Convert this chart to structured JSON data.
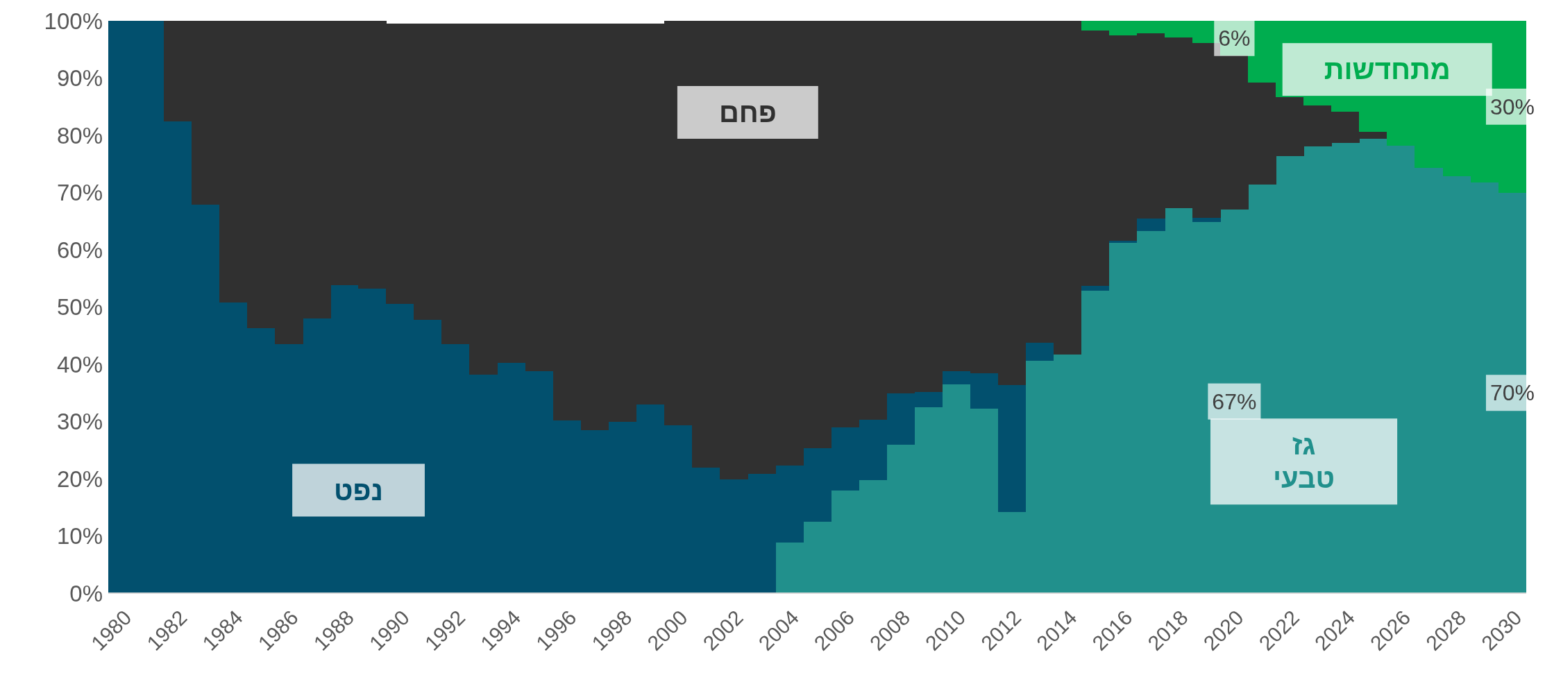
{
  "chart_data": {
    "type": "bar",
    "stacked": true,
    "categories": [
      "1980",
      null,
      "1982",
      null,
      "1984",
      null,
      "1986",
      null,
      "1988",
      null,
      "1990",
      null,
      "1992",
      null,
      "1994",
      null,
      "1996",
      null,
      "1998",
      null,
      "2000",
      null,
      "2002",
      null,
      "2004",
      null,
      "2006",
      null,
      "2008",
      null,
      "2010",
      null,
      "2012",
      null,
      "2014",
      null,
      "2016",
      null,
      "2018",
      null,
      "2020",
      null,
      "2022",
      null,
      "2024",
      null,
      "2026",
      null,
      "2028",
      null,
      "2030"
    ],
    "series": [
      {
        "name": "גז טבעי",
        "color": "#21908c",
        "values": [
          0,
          0,
          0,
          0,
          0,
          0,
          0,
          0,
          0,
          0,
          0,
          0,
          0,
          0,
          0,
          0,
          0,
          0,
          0,
          0,
          0,
          0,
          0,
          0,
          8.9,
          12.5,
          17.9,
          19.7,
          26,
          32.5,
          36.5,
          32.2,
          14.2,
          40.6,
          41.7,
          52.8,
          61.2,
          63.3,
          67.3,
          64.9,
          67,
          71.4,
          76.4,
          78.1,
          78.7,
          79.4,
          78.2,
          74.3,
          72.9,
          71.7,
          70
        ],
        "value_labels": [
          null,
          null,
          null,
          null,
          null,
          null,
          null,
          null,
          null,
          null,
          null,
          null,
          null,
          null,
          null,
          null,
          null,
          null,
          null,
          null,
          null,
          null,
          null,
          null,
          null,
          null,
          null,
          null,
          null,
          null,
          null,
          null,
          null,
          null,
          null,
          null,
          null,
          null,
          null,
          null,
          "67%",
          null,
          null,
          null,
          null,
          null,
          null,
          null,
          null,
          null,
          "70%"
        ]
      },
      {
        "name": "נפט",
        "color": "#02506e",
        "values": [
          100,
          100,
          82.4,
          67.9,
          50.8,
          46.3,
          43.5,
          48,
          53.8,
          53.2,
          50.6,
          47.8,
          43.5,
          38.2,
          40.3,
          38.8,
          30.2,
          28.5,
          30,
          33,
          29.3,
          22,
          19.9,
          20.8,
          13.4,
          12.8,
          11.1,
          10.6,
          8.9,
          2.7,
          2.3,
          6.2,
          22.2,
          3.1,
          0,
          0.9,
          0.4,
          2.1,
          0,
          0.7,
          0,
          0,
          0,
          0,
          0,
          0,
          0,
          0,
          0,
          0,
          0
        ]
      },
      {
        "name": "פחם",
        "color": "#303030",
        "values": [
          0,
          0,
          17.6,
          32.1,
          49.2,
          53.7,
          56.5,
          52,
          46.2,
          46.8,
          48.9,
          51.7,
          56,
          61.3,
          59.2,
          60.7,
          69.3,
          71,
          69.5,
          66.5,
          70.7,
          78,
          80.1,
          79.2,
          77.7,
          74.7,
          71,
          69.7,
          65.1,
          64.8,
          61.2,
          61.6,
          63.6,
          56.3,
          58.3,
          44.6,
          35.9,
          32.4,
          29.8,
          30.5,
          27,
          17.8,
          10.3,
          7.1,
          5.4,
          1.2,
          0,
          0,
          0,
          0,
          0
        ]
      },
      {
        "name": "מתחדשות",
        "color": "#00ad4f",
        "values": [
          0,
          0,
          0,
          0,
          0,
          0,
          0,
          0,
          0,
          0,
          0,
          0,
          0,
          0,
          0,
          0,
          0,
          0,
          0,
          0,
          0,
          0,
          0,
          0,
          0,
          0,
          0,
          0,
          0,
          0,
          0,
          0,
          0,
          0,
          0,
          1.7,
          2.5,
          2.2,
          2.9,
          3.9,
          6,
          10.8,
          13.3,
          14.8,
          15.9,
          19.4,
          21.8,
          25.7,
          27.1,
          28.3,
          30
        ],
        "value_labels": [
          null,
          null,
          null,
          null,
          null,
          null,
          null,
          null,
          null,
          null,
          null,
          null,
          null,
          null,
          null,
          null,
          null,
          null,
          null,
          null,
          null,
          null,
          null,
          null,
          null,
          null,
          null,
          null,
          null,
          null,
          null,
          null,
          null,
          null,
          null,
          null,
          null,
          null,
          null,
          null,
          "6%",
          null,
          null,
          null,
          null,
          null,
          null,
          null,
          null,
          null,
          "30%"
        ]
      }
    ],
    "ylim": [
      0,
      100
    ],
    "yticks": [
      {
        "value": 0,
        "label": "0%"
      },
      {
        "value": 10,
        "label": "10%"
      },
      {
        "value": 20,
        "label": "20%"
      },
      {
        "value": 30,
        "label": "30%"
      },
      {
        "value": 40,
        "label": "40%"
      },
      {
        "value": 50,
        "label": "50%"
      },
      {
        "value": 60,
        "label": "60%"
      },
      {
        "value": 70,
        "label": "70%"
      },
      {
        "value": 80,
        "label": "80%"
      },
      {
        "value": 90,
        "label": "90%"
      },
      {
        "value": 100,
        "label": "100%"
      }
    ]
  }
}
